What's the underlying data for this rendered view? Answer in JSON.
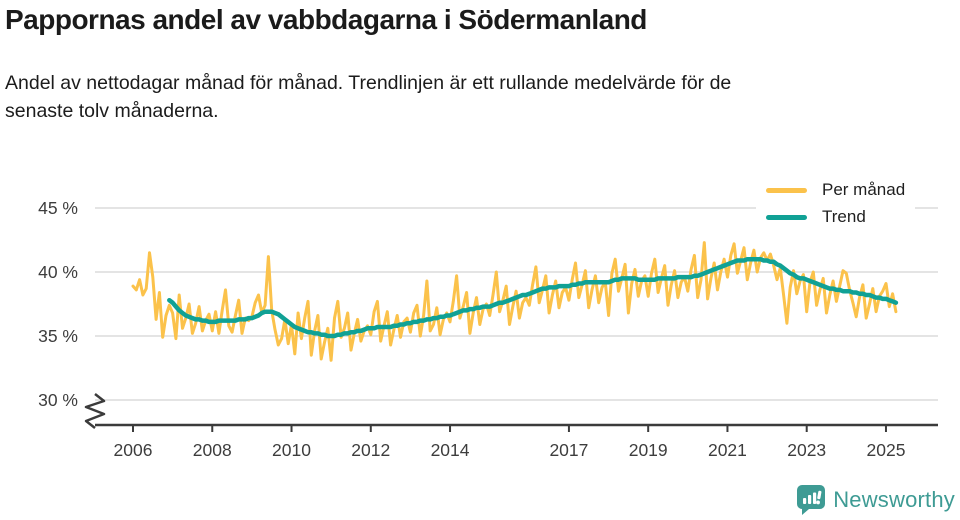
{
  "header": {
    "title": "Pappornas andel av vabbdagarna i Södermanland",
    "subtitle": "Andel av nettodagar månad för månad. Trendlinjen är ett rullande medelvärde för de senaste tolv månaderna."
  },
  "footer": {
    "brand": "Newsworthy",
    "logo_icon": "newsworthy-speech-bubble-chart-icon",
    "brand_color": "#3e9b94"
  },
  "colors": {
    "per_manad_line": "#fbc24b",
    "trend_line": "#10a195",
    "gridline": "#e4e4e4",
    "axis": "#3b3b3b",
    "text": "#1b1b1b",
    "tick_label": "#3d3d3d",
    "background": "#ffffff"
  },
  "chart_data": {
    "type": "line",
    "title": "Pappornas andel av vabbdagarna i Södermanland",
    "xlabel": "",
    "ylabel": "",
    "unit": "%",
    "grid": "horizontal",
    "legend_position": "top-right",
    "axis_break_below": 30,
    "ylim": [
      28.5,
      46.5
    ],
    "x_range": [
      "2006-01",
      "2025-04"
    ],
    "y_axis": {
      "ticks": [
        {
          "label": "45 %",
          "value": 45
        },
        {
          "label": "40 %",
          "value": 40
        },
        {
          "label": "35 %",
          "value": 35
        },
        {
          "label": "30 %",
          "value": 30
        }
      ]
    },
    "x_axis": {
      "ticks": [
        2006,
        2008,
        2010,
        2012,
        2014,
        2017,
        2019,
        2021,
        2023,
        2025
      ]
    },
    "series": [
      {
        "id": "per-manad",
        "name": "Per månad",
        "color": "#fbc24b",
        "width": 3,
        "start_year": 2006,
        "start_month": 1,
        "values": [
          38.9,
          38.6,
          39.4,
          38.2,
          38.7,
          41.5,
          39.6,
          36.3,
          38.4,
          34.9,
          36.6,
          37.4,
          36.8,
          34.8,
          38.2,
          35.6,
          36.4,
          37.5,
          35.2,
          36.0,
          37.3,
          35.4,
          36.2,
          36.7,
          35.4,
          36.9,
          35.2,
          37.0,
          38.6,
          35.8,
          35.3,
          36.6,
          37.8,
          35.2,
          36.4,
          36.2,
          36.5,
          37.6,
          38.2,
          36.8,
          37.4,
          41.2,
          37.0,
          35.5,
          34.3,
          34.8,
          36.3,
          34.4,
          35.9,
          33.6,
          36.8,
          34.8,
          36.4,
          37.7,
          33.5,
          35.4,
          36.6,
          33.2,
          34.5,
          35.6,
          33.1,
          36.4,
          37.7,
          34.9,
          35.6,
          36.8,
          33.9,
          35.2,
          36.3,
          34.6,
          35.4,
          35.8,
          35.1,
          36.9,
          37.7,
          34.6,
          35.8,
          36.9,
          34.3,
          35.5,
          36.6,
          34.9,
          36.1,
          36.4,
          35.3,
          36.8,
          37.4,
          35.0,
          36.6,
          39.3,
          35.4,
          35.9,
          37.2,
          35.1,
          36.3,
          36.8,
          36.1,
          37.7,
          39.7,
          36.4,
          37.3,
          38.4,
          35.2,
          36.8,
          38.0,
          35.9,
          37.1,
          37.5,
          36.6,
          38.2,
          40.0,
          36.9,
          37.8,
          38.9,
          35.9,
          37.3,
          38.5,
          36.4,
          37.6,
          38.0,
          37.4,
          39.0,
          40.4,
          37.6,
          38.6,
          39.7,
          36.8,
          38.2,
          39.3,
          37.2,
          38.4,
          38.8,
          37.8,
          39.4,
          40.7,
          38.0,
          39.0,
          40.1,
          37.2,
          38.6,
          39.7,
          37.6,
          38.8,
          39.2,
          36.6,
          39.9,
          41.0,
          38.5,
          39.5,
          40.6,
          36.8,
          39.1,
          40.2,
          38.1,
          39.3,
          39.7,
          38.1,
          39.9,
          41.0,
          38.4,
          39.5,
          40.5,
          37.4,
          39.0,
          40.1,
          38.0,
          39.2,
          39.6,
          38.5,
          40.2,
          41.3,
          38.0,
          39.4,
          42.3,
          37.9,
          39.5,
          40.7,
          38.6,
          40.0,
          41.0,
          39.6,
          41.3,
          42.2,
          39.9,
          40.9,
          41.9,
          39.4,
          40.7,
          41.7,
          40.0,
          41.1,
          41.5,
          40.9,
          41.4,
          40.5,
          39.4,
          40.3,
          38.2,
          36.0,
          38.8,
          40.1,
          38.3,
          39.3,
          39.8,
          36.9,
          39.2,
          40.0,
          37.4,
          38.6,
          39.5,
          36.8,
          38.2,
          39.3,
          37.7,
          38.9,
          40.1,
          39.9,
          38.6,
          37.6,
          36.5,
          38.0,
          39.0,
          36.4,
          37.5,
          38.7,
          36.9,
          38.1,
          38.5,
          39.1,
          37.3,
          38.3,
          36.9
        ]
      },
      {
        "id": "trend",
        "name": "Trend",
        "color": "#10a195",
        "width": 4.5,
        "start_year": 2006,
        "start_month": 12,
        "values": [
          37.8,
          37.6,
          37.3,
          37.0,
          36.8,
          36.6,
          36.5,
          36.4,
          36.3,
          36.3,
          36.2,
          36.2,
          36.1,
          36.1,
          36.1,
          36.2,
          36.2,
          36.2,
          36.2,
          36.2,
          36.2,
          36.3,
          36.3,
          36.3,
          36.4,
          36.4,
          36.5,
          36.6,
          36.8,
          36.9,
          36.9,
          36.9,
          36.8,
          36.7,
          36.5,
          36.3,
          36.1,
          35.9,
          35.7,
          35.6,
          35.5,
          35.4,
          35.3,
          35.3,
          35.2,
          35.2,
          35.1,
          35.1,
          35.0,
          35.0,
          35.0,
          35.1,
          35.1,
          35.2,
          35.2,
          35.3,
          35.3,
          35.4,
          35.4,
          35.5,
          35.6,
          35.6,
          35.6,
          35.7,
          35.7,
          35.7,
          35.7,
          35.7,
          35.8,
          35.8,
          35.9,
          35.9,
          36.0,
          36.0,
          36.1,
          36.1,
          36.2,
          36.2,
          36.3,
          36.3,
          36.4,
          36.4,
          36.5,
          36.5,
          36.6,
          36.6,
          36.7,
          36.8,
          36.9,
          37.0,
          37.0,
          37.1,
          37.1,
          37.2,
          37.2,
          37.3,
          37.3,
          37.3,
          37.4,
          37.5,
          37.6,
          37.6,
          37.7,
          37.8,
          37.9,
          38.0,
          38.1,
          38.2,
          38.2,
          38.3,
          38.4,
          38.5,
          38.6,
          38.7,
          38.7,
          38.8,
          38.8,
          38.8,
          38.9,
          38.9,
          38.9,
          38.9,
          39.0,
          39.0,
          39.1,
          39.1,
          39.2,
          39.2,
          39.2,
          39.2,
          39.2,
          39.2,
          39.2,
          39.2,
          39.3,
          39.4,
          39.4,
          39.5,
          39.5,
          39.5,
          39.5,
          39.5,
          39.4,
          39.4,
          39.4,
          39.4,
          39.4,
          39.4,
          39.5,
          39.5,
          39.5,
          39.5,
          39.5,
          39.5,
          39.6,
          39.6,
          39.6,
          39.6,
          39.6,
          39.7,
          39.7,
          39.8,
          39.9,
          40.0,
          40.1,
          40.2,
          40.3,
          40.4,
          40.5,
          40.6,
          40.7,
          40.8,
          40.9,
          40.9,
          40.9,
          41.0,
          41.0,
          41.0,
          41.0,
          41.0,
          40.9,
          40.9,
          40.8,
          40.8,
          40.6,
          40.5,
          40.3,
          40.1,
          39.9,
          39.8,
          39.6,
          39.5,
          39.5,
          39.4,
          39.3,
          39.2,
          39.1,
          39.0,
          38.9,
          38.8,
          38.7,
          38.7,
          38.6,
          38.6,
          38.5,
          38.5,
          38.5,
          38.4,
          38.4,
          38.3,
          38.3,
          38.2,
          38.2,
          38.1,
          38.0,
          38.0,
          37.9,
          37.9,
          37.8,
          37.7,
          37.6
        ]
      }
    ]
  }
}
